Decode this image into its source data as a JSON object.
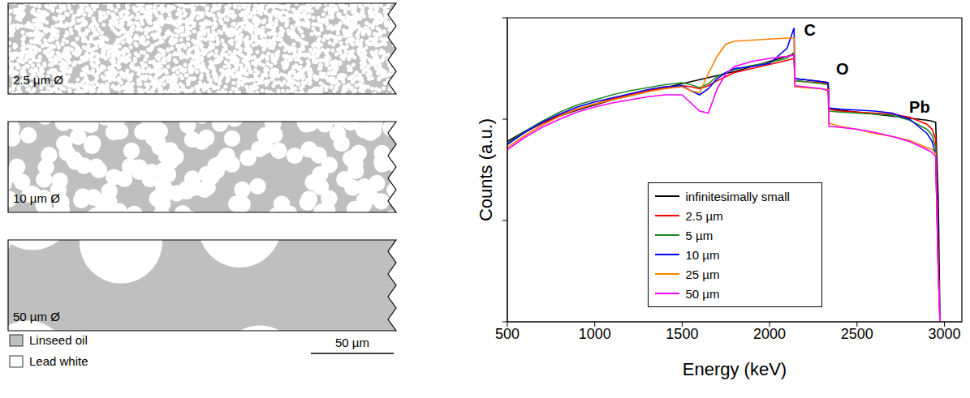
{
  "schematic": {
    "panels": [
      {
        "label": "2.5 µm Ø",
        "diameter": 2.5
      },
      {
        "label": "10 µm Ø",
        "diameter": 10
      },
      {
        "label": "50 µm Ø",
        "diameter": 50
      }
    ],
    "legend": [
      {
        "label": "Linseed oil",
        "color": "#bfbfbf"
      },
      {
        "label": "Lead white",
        "color": "#ffffff"
      }
    ],
    "scale_bar": {
      "label": "50 µm",
      "length": 50
    }
  },
  "chart_data": {
    "type": "line",
    "x_label": "Energy (keV)",
    "y_label": "Counts (a.u.)",
    "xlim": [
      500,
      3100
    ],
    "xticks": [
      500,
      1000,
      1500,
      2000,
      2500,
      3000
    ],
    "ylim": [
      0,
      3
    ],
    "yticks": [
      0,
      1,
      2,
      3
    ],
    "tick_labels": "x",
    "grid": false,
    "legend": "lower center",
    "annotations": [
      {
        "text": "C",
        "x": 2230,
        "y": 2.88
      },
      {
        "text": "O",
        "x": 2417,
        "y": 2.5
      },
      {
        "text": "Pb",
        "x": 2858,
        "y": 2.12
      }
    ],
    "x": [
      500,
      600,
      700,
      800,
      900,
      1000,
      1100,
      1200,
      1300,
      1400,
      1500,
      1550,
      1600,
      1650,
      1700,
      1750,
      1800,
      1900,
      2000,
      2100,
      2140,
      2145,
      2200,
      2300,
      2335,
      2340,
      2400,
      2500,
      2600,
      2700,
      2800,
      2900,
      2930,
      2950,
      2965,
      2975
    ],
    "series": [
      {
        "name": "infinitesimally small",
        "color": "#000000",
        "values": [
          1.78,
          1.88,
          1.96,
          2.03,
          2.09,
          2.14,
          2.19,
          2.23,
          2.27,
          2.31,
          2.35,
          2.37,
          2.39,
          2.41,
          2.43,
          2.45,
          2.47,
          2.52,
          2.57,
          2.62,
          2.64,
          2.4,
          2.39,
          2.37,
          2.36,
          2.11,
          2.09,
          2.07,
          2.05,
          2.03,
          2.01,
          1.99,
          1.98,
          1.97,
          1.2,
          0
        ]
      },
      {
        "name": "2.5 µm",
        "color": "#ff0000",
        "values": [
          1.76,
          1.87,
          1.96,
          2.04,
          2.1,
          2.15,
          2.2,
          2.24,
          2.28,
          2.31,
          2.33,
          2.32,
          2.3,
          2.33,
          2.38,
          2.42,
          2.46,
          2.5,
          2.54,
          2.58,
          2.6,
          2.38,
          2.37,
          2.36,
          2.35,
          2.1,
          2.08,
          2.07,
          2.06,
          2.05,
          2.02,
          1.95,
          1.9,
          1.8,
          0.6,
          0
        ]
      },
      {
        "name": "5 µm",
        "color": "#228b22",
        "values": [
          1.76,
          1.88,
          1.98,
          2.07,
          2.14,
          2.19,
          2.24,
          2.28,
          2.31,
          2.34,
          2.36,
          2.34,
          2.31,
          2.35,
          2.42,
          2.46,
          2.49,
          2.53,
          2.56,
          2.6,
          2.66,
          2.38,
          2.37,
          2.35,
          2.34,
          2.08,
          2.07,
          2.06,
          2.05,
          2.04,
          1.99,
          1.9,
          1.84,
          1.72,
          0.5,
          0
        ]
      },
      {
        "name": "10 µm",
        "color": "#0000ff",
        "values": [
          1.75,
          1.87,
          1.97,
          2.05,
          2.12,
          2.17,
          2.21,
          2.25,
          2.29,
          2.32,
          2.33,
          2.28,
          2.24,
          2.3,
          2.4,
          2.46,
          2.5,
          2.52,
          2.55,
          2.7,
          2.9,
          2.4,
          2.39,
          2.37,
          2.36,
          2.11,
          2.1,
          2.09,
          2.08,
          2.06,
          2.0,
          1.86,
          1.78,
          1.65,
          0.5,
          0
        ]
      },
      {
        "name": "25 µm",
        "color": "#ff8000",
        "values": [
          1.72,
          1.84,
          1.94,
          2.03,
          2.1,
          2.15,
          2.19,
          2.23,
          2.27,
          2.3,
          2.32,
          2.28,
          2.26,
          2.45,
          2.62,
          2.74,
          2.77,
          2.78,
          2.79,
          2.8,
          2.8,
          2.32,
          2.31,
          2.3,
          2.29,
          1.96,
          1.93,
          1.9,
          1.86,
          1.83,
          1.79,
          1.72,
          1.7,
          1.66,
          0.5,
          0
        ]
      },
      {
        "name": "50 µm",
        "color": "#ff00ff",
        "values": [
          1.7,
          1.82,
          1.92,
          2.0,
          2.07,
          2.12,
          2.16,
          2.19,
          2.22,
          2.24,
          2.24,
          2.16,
          2.08,
          2.06,
          2.3,
          2.45,
          2.52,
          2.57,
          2.6,
          2.62,
          2.63,
          2.33,
          2.32,
          2.3,
          2.28,
          1.93,
          1.92,
          1.9,
          1.87,
          1.83,
          1.78,
          1.7,
          1.67,
          1.63,
          0.5,
          0
        ]
      }
    ]
  }
}
